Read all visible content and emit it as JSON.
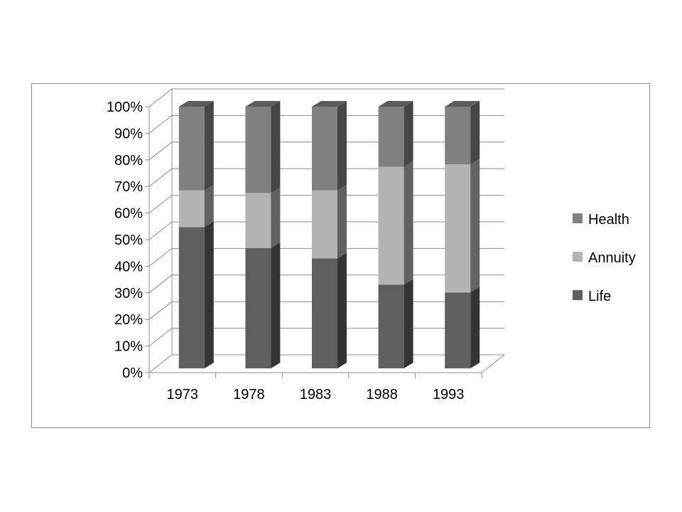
{
  "chart_data": {
    "type": "bar",
    "stacked": "100%",
    "three_d": true,
    "categories": [
      "1973",
      "1978",
      "1983",
      "1988",
      "1993"
    ],
    "series": [
      {
        "name": "Life",
        "color": "#5f5f5f",
        "values": [
          54,
          46,
          42,
          32,
          29
        ]
      },
      {
        "name": "Annuity",
        "color": "#b3b3b3",
        "values": [
          14,
          21,
          26,
          45,
          49
        ]
      },
      {
        "name": "Health",
        "color": "#808080",
        "values": [
          32,
          33,
          32,
          23,
          22
        ]
      }
    ],
    "y_ticks": [
      "0%",
      "10%",
      "20%",
      "30%",
      "40%",
      "50%",
      "60%",
      "70%",
      "80%",
      "90%",
      "100%"
    ],
    "ylim": [
      0,
      100
    ],
    "grid": true,
    "legend_position": "right",
    "legend_order": [
      "Health",
      "Annuity",
      "Life"
    ]
  }
}
